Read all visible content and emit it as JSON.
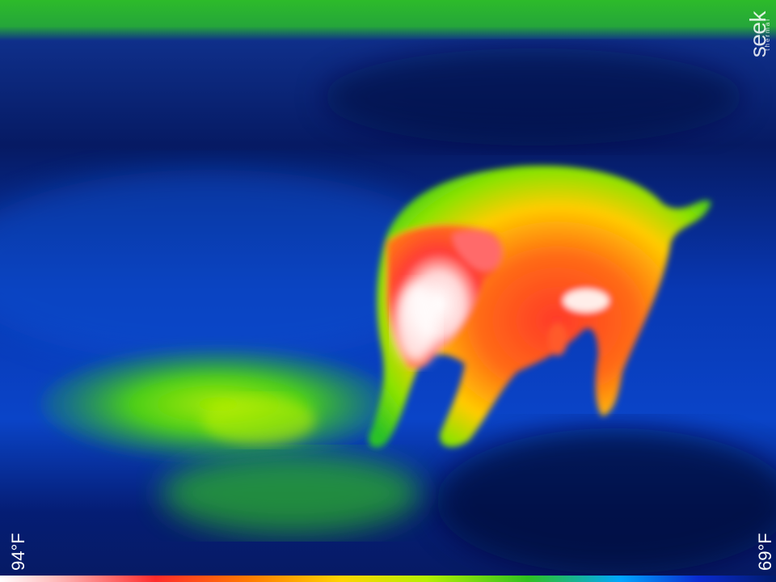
{
  "overlay": {
    "brand_main": "seek",
    "brand_sub": "thermal",
    "temp_max": "94°F",
    "temp_min": "69°F"
  },
  "scene": {
    "subject": "pig-thermal-silhouette",
    "palette": [
      "#ffffff",
      "#ff2b2b",
      "#ffd400",
      "#2fc21f",
      "#00a6ff",
      "#0a2bd1",
      "#001b6b"
    ]
  }
}
